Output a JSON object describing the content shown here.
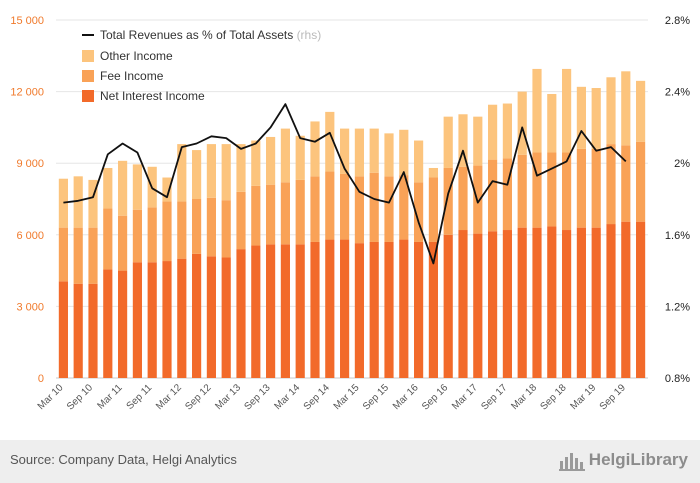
{
  "chart_data": {
    "type": "bar",
    "stacked": true,
    "categories": [
      "Mar 10",
      "Jun 10",
      "Sep 10",
      "Dec 10",
      "Mar 11",
      "Jun 11",
      "Sep 11",
      "Dec 11",
      "Mar 12",
      "Jun 12",
      "Sep 12",
      "Dec 12",
      "Mar 13",
      "Jun 13",
      "Sep 13",
      "Dec 13",
      "Mar 14",
      "Jun 14",
      "Sep 14",
      "Dec 14",
      "Mar 15",
      "Jun 15",
      "Sep 15",
      "Dec 15",
      "Mar 16",
      "Jun 16",
      "Sep 16",
      "Dec 16",
      "Mar 17",
      "Jun 17",
      "Sep 17",
      "Dec 17",
      "Mar 18",
      "Jun 18",
      "Sep 18",
      "Dec 18",
      "Mar 19",
      "Jun 19",
      "Sep 19",
      "Dec 19"
    ],
    "x_tick_labels": [
      "Mar 10",
      "Sep 10",
      "Mar 11",
      "Sep 11",
      "Mar 12",
      "Sep 12",
      "Mar 13",
      "Sep 13",
      "Mar 14",
      "Sep 14",
      "Mar 15",
      "Sep 15",
      "Mar 16",
      "Sep 16",
      "Mar 17",
      "Sep 17",
      "Mar 18",
      "Sep 18",
      "Mar 19",
      "Sep 19"
    ],
    "series": [
      {
        "name": "Net Interest Income",
        "color": "#f26a2a",
        "values": [
          4050,
          3950,
          3950,
          4550,
          4500,
          4850,
          4850,
          4900,
          5000,
          5200,
          5100,
          5050,
          5400,
          5550,
          5600,
          5600,
          5600,
          5700,
          5800,
          5800,
          5650,
          5700,
          5700,
          5800,
          5700,
          5700,
          6000,
          6200,
          6050,
          6150,
          6200,
          6300,
          6300,
          6350,
          6200,
          6300,
          6300,
          6450,
          6550,
          6550
        ]
      },
      {
        "name": "Fee Income",
        "color": "#f9a257",
        "values": [
          2250,
          2350,
          2350,
          2550,
          2300,
          2200,
          2300,
          2500,
          2400,
          2300,
          2450,
          2400,
          2400,
          2500,
          2500,
          2600,
          2700,
          2750,
          2850,
          2750,
          2800,
          2900,
          2750,
          2700,
          2500,
          2700,
          2800,
          2650,
          2850,
          3000,
          3000,
          3050,
          3150,
          3100,
          3250,
          3300,
          3300,
          3350,
          3200,
          3350
        ]
      },
      {
        "name": "Other Income",
        "color": "#fcc47d",
        "values": [
          2050,
          2150,
          2000,
          1700,
          2300,
          1900,
          1700,
          1000,
          2400,
          2050,
          2250,
          2350,
          2000,
          1900,
          2000,
          2250,
          1850,
          2300,
          2500,
          1900,
          2000,
          1850,
          1800,
          1900,
          1750,
          400,
          2150,
          2200,
          2050,
          2300,
          2300,
          2650,
          3500,
          2450,
          3500,
          2600,
          2550,
          2800,
          3100,
          2550
        ]
      }
    ],
    "line": {
      "name": "Total Revenues as % of Total Assets",
      "axis_note": "(rhs)",
      "color": "#111111",
      "values": [
        1.78,
        1.79,
        1.81,
        2.05,
        2.11,
        2.06,
        1.86,
        1.81,
        2.09,
        2.11,
        2.15,
        2.14,
        2.08,
        2.11,
        2.2,
        2.33,
        2.14,
        2.12,
        2.17,
        1.97,
        1.84,
        1.8,
        1.78,
        1.95,
        1.67,
        1.44,
        1.83,
        2.07,
        1.78,
        1.9,
        1.88,
        2.2,
        1.93,
        1.97,
        2.01,
        2.18,
        2.07,
        2.09,
        2.01,
        null
      ]
    },
    "y_left": {
      "ylim": [
        0,
        15000
      ],
      "ticks": [
        "0",
        "3 000",
        "6 000",
        "9 000",
        "12 000",
        "15 000"
      ],
      "tick_values": [
        0,
        3000,
        6000,
        9000,
        12000,
        15000
      ]
    },
    "y_right": {
      "ylim": [
        0.8,
        2.8
      ],
      "ticks": [
        "0.8%",
        "1.2%",
        "1.6%",
        "2%",
        "2.4%",
        "2.8%"
      ],
      "tick_values": [
        0.8,
        1.2,
        1.6,
        2.0,
        2.4,
        2.8
      ]
    },
    "legend_position": "top-left",
    "grid": "horizontal"
  },
  "footer": {
    "source": "Source: Company Data, Helgi Analytics",
    "brand": "HelgiLibrary"
  }
}
